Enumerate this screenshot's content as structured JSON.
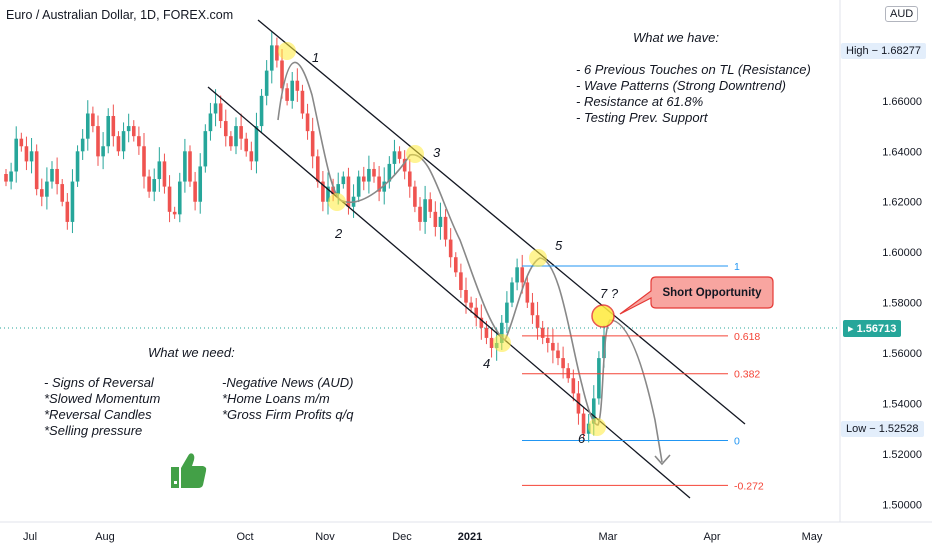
{
  "header": {
    "title": "Euro / Australian Dollar, 1D, FOREX.com",
    "currency_button": "AUD"
  },
  "notes": {
    "have_title": "What we have:",
    "have_items": [
      "- 6 Previous Touches on TL (Resistance)",
      "- Wave Patterns (Strong Downtrend)",
      "- Resistance at 61.8%",
      "- Testing Prev. Support"
    ],
    "need_title": "What we need:",
    "need_left": [
      "- Signs of Reversal",
      "*Slowed Momentum",
      "*Reversal Candles",
      "*Selling pressure"
    ],
    "need_right": [
      "-Negative News (AUD)",
      "*Home Loans m/m",
      "*Gross Firm Profits q/q"
    ]
  },
  "callout": {
    "label": "Short Opportunity",
    "bg": "#f8a5a0",
    "border": "#e53935"
  },
  "wave_labels": [
    "1",
    "2",
    "3",
    "4",
    "5",
    "6",
    "7 ?"
  ],
  "price_tags": {
    "high": {
      "label": "High",
      "value": "1.68277"
    },
    "last": {
      "value": "1.56713",
      "color": "#26a69a"
    },
    "low": {
      "label": "Low",
      "value": "1.52528"
    }
  },
  "colors": {
    "up": "#26a69a",
    "down": "#ef5350",
    "fib_top": "#2196f3",
    "fib_red": "#f44336",
    "channel": "#131722",
    "touch": "#ffeb3b",
    "thumb": "#43a047"
  },
  "chart_data": {
    "type": "candlestick",
    "title": "Euro / Australian Dollar, 1D, FOREX.com",
    "y_ticks": [
      "1.50000",
      "1.52000",
      "1.54000",
      "1.56000",
      "1.58000",
      "1.60000",
      "1.62000",
      "1.64000",
      "1.66000",
      "1.68000"
    ],
    "y_range": [
      1.493,
      1.7
    ],
    "x_ticks": [
      "Jul",
      "Aug",
      "Oct",
      "Nov",
      "Dec",
      "2021",
      "Mar",
      "Apr",
      "May"
    ],
    "fib_levels": [
      {
        "label": "1",
        "value": 1.5945
      },
      {
        "label": "0.618",
        "value": 1.5668
      },
      {
        "label": "0.382",
        "value": 1.5518
      },
      {
        "label": "0",
        "value": 1.5253
      },
      {
        "label": "-0.272",
        "value": 1.5075
      }
    ],
    "high": 1.68277,
    "low": 1.52528,
    "last": 1.56713,
    "price_path": [
      1.628,
      1.632,
      1.645,
      1.642,
      1.636,
      1.64,
      1.625,
      1.622,
      1.628,
      1.633,
      1.627,
      1.62,
      1.612,
      1.628,
      1.64,
      1.645,
      1.655,
      1.65,
      1.638,
      1.642,
      1.654,
      1.646,
      1.64,
      1.648,
      1.65,
      1.646,
      1.642,
      1.63,
      1.624,
      1.629,
      1.636,
      1.626,
      1.616,
      1.615,
      1.628,
      1.64,
      1.628,
      1.62,
      1.634,
      1.648,
      1.655,
      1.659,
      1.652,
      1.646,
      1.642,
      1.65,
      1.645,
      1.64,
      1.636,
      1.65,
      1.662,
      1.672,
      1.682,
      1.676,
      1.665,
      1.66,
      1.668,
      1.664,
      1.655,
      1.648,
      1.638,
      1.628,
      1.62,
      1.626,
      1.623,
      1.627,
      1.63,
      1.618,
      1.622,
      1.63,
      1.628,
      1.633,
      1.63,
      1.624,
      1.628,
      1.635,
      1.64,
      1.637,
      1.632,
      1.626,
      1.618,
      1.612,
      1.621,
      1.616,
      1.61,
      1.614,
      1.605,
      1.598,
      1.592,
      1.585,
      1.58,
      1.578,
      1.574,
      1.57,
      1.566,
      1.562,
      1.564,
      1.572,
      1.58,
      1.588,
      1.594,
      1.588,
      1.58,
      1.575,
      1.57,
      1.566,
      1.564,
      1.561,
      1.558,
      1.554,
      1.55,
      1.544,
      1.536,
      1.528,
      1.532,
      1.542,
      1.558,
      1.567
    ]
  }
}
